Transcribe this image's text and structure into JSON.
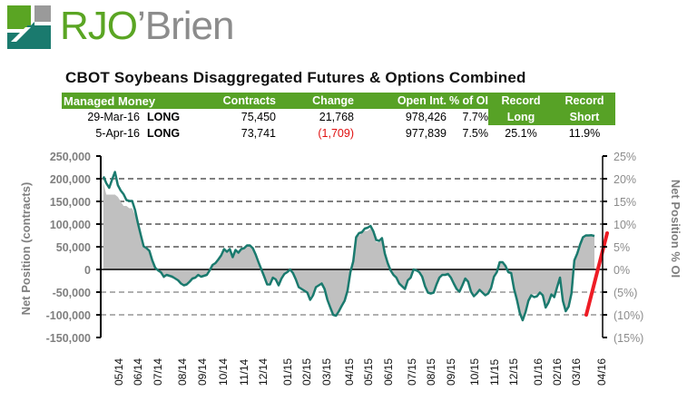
{
  "brand": {
    "name_part1": "RJO",
    "name_part2": "’Brien",
    "colors": {
      "green": "#5aa523",
      "teal": "#1a7a6e",
      "gray": "#8c8c8c"
    }
  },
  "title": "CBOT Soybeans Disaggregated Futures & Options Combined",
  "table": {
    "headers": [
      "Managed Money",
      "",
      "Contracts",
      "Change",
      "Open Int.",
      "% of OI",
      "Record",
      "Record"
    ],
    "headers_row2": [
      "Long",
      "Short"
    ],
    "rows": [
      {
        "date": "29-Mar-16",
        "side": "LONG",
        "contracts": "75,450",
        "change": "21,768",
        "open_int": "978,426",
        "pct_oi": "7.7%",
        "record_long": "",
        "record_short": ""
      },
      {
        "date": "5-Apr-16",
        "side": "LONG",
        "contracts": "73,741",
        "change": "(1,709)",
        "open_int": "977,839",
        "pct_oi": "7.5%",
        "record_long": "25.1%",
        "record_short": "11.9%"
      }
    ]
  },
  "chart_data": {
    "type": "line",
    "title": "CBOT Soybeans Disaggregated Futures & Options Combined",
    "ylabel": "Net Position (contracts)",
    "y2label": "Net Position % OI",
    "ylim": [
      -150000,
      250000
    ],
    "y2lim": [
      -15,
      25
    ],
    "y_ticks": [
      "250,000",
      "200,000",
      "150,000",
      "100,000",
      "50,000",
      "0",
      "-50,000",
      "-100,000",
      "-150,000"
    ],
    "y2_ticks": [
      "25%",
      "20%",
      "15%",
      "10%",
      "5%",
      "0%",
      "(5%)",
      "(10%)",
      "(15%)"
    ],
    "x_ticks": [
      "05/14",
      "06/14",
      "07/14",
      "08/14",
      "09/14",
      "10/14",
      "11/14",
      "12/14",
      "01/15",
      "02/15",
      "03/15",
      "04/15",
      "05/15",
      "06/15",
      "07/15",
      "08/15",
      "09/15",
      "10/15",
      "11/15",
      "12/15",
      "01/16",
      "02/16",
      "03/16",
      "04/16"
    ],
    "x_range": [
      "04/14",
      "04/16"
    ],
    "grid": true,
    "series": [
      {
        "name": "Net Position (contracts)",
        "axis": "left",
        "style": "line",
        "color": "#1a7a6e",
        "values": [
          205000,
          190000,
          180000,
          198000,
          215000,
          186000,
          174000,
          166000,
          153000,
          151000,
          151000,
          131000,
          102000,
          76000,
          51000,
          47000,
          41000,
          20000,
          4000,
          -2000,
          -6000,
          -16000,
          -12000,
          -14000,
          -16000,
          -20000,
          -24000,
          -31000,
          -35000,
          -33000,
          -27000,
          -20000,
          -18000,
          -12000,
          -16000,
          -14000,
          -12000,
          -2000,
          10000,
          14000,
          22000,
          31000,
          45000,
          39000,
          45000,
          27000,
          43000,
          37000,
          45000,
          47000,
          53000,
          53000,
          47000,
          33000,
          16000,
          0,
          -16000,
          -33000,
          -33000,
          -18000,
          -22000,
          -35000,
          -20000,
          -10000,
          -6000,
          0,
          -8000,
          -22000,
          -39000,
          -43000,
          -47000,
          -51000,
          -67000,
          -57000,
          -39000,
          -35000,
          -31000,
          -43000,
          -67000,
          -84000,
          -100000,
          -102000,
          -92000,
          -80000,
          -69000,
          -47000,
          -6000,
          18000,
          71000,
          80000,
          82000,
          90000,
          92000,
          96000,
          84000,
          65000,
          63000,
          69000,
          35000,
          14000,
          -2000,
          -12000,
          -18000,
          -31000,
          -37000,
          -43000,
          -24000,
          -18000,
          0,
          -2000,
          -6000,
          -16000,
          -37000,
          -51000,
          -53000,
          -51000,
          -33000,
          -18000,
          -12000,
          -12000,
          -10000,
          -18000,
          -31000,
          -43000,
          -49000,
          -35000,
          -20000,
          -27000,
          -49000,
          -59000,
          -53000,
          -45000,
          -51000,
          -57000,
          -53000,
          -41000,
          -16000,
          -6000,
          16000,
          16000,
          8000,
          -6000,
          -8000,
          -43000,
          -67000,
          -96000,
          -112000,
          -94000,
          -69000,
          -57000,
          -61000,
          -59000,
          -51000,
          -57000,
          -84000,
          -73000,
          -55000,
          -61000,
          -39000,
          -18000,
          -69000,
          -92000,
          -82000,
          -53000,
          20000,
          35000,
          55000,
          71000,
          75000,
          75000,
          75450,
          73741
        ]
      },
      {
        "name": "Net Position % OI",
        "axis": "right",
        "style": "area",
        "color": "#c0c0c0",
        "values": [
          19.0,
          16.5,
          16.5,
          16.5,
          16.5,
          16.0,
          15.0,
          14.0,
          14.0,
          13.5,
          13.5,
          12.0,
          9.5,
          7.5,
          5.0,
          4.5,
          4.0,
          2.0,
          0.5,
          -0.5,
          -1.0,
          -2.0,
          -1.5,
          -1.5,
          -2.0,
          -2.0,
          -2.5,
          -3.0,
          -3.5,
          -3.5,
          -3.0,
          -2.0,
          -2.0,
          -1.5,
          -1.5,
          -1.5,
          -1.0,
          0.0,
          1.0,
          1.5,
          2.0,
          3.0,
          4.5,
          4.0,
          4.5,
          3.0,
          4.0,
          4.0,
          4.5,
          4.5,
          5.0,
          5.0,
          4.5,
          3.5,
          1.5,
          0.0,
          -1.5,
          -3.0,
          -3.0,
          -2.0,
          -2.5,
          -3.5,
          -2.0,
          -1.0,
          -0.5,
          0.0,
          -1.0,
          -2.0,
          -4.0,
          -4.5,
          -5.0,
          -5.0,
          -6.0,
          -5.5,
          -4.0,
          -3.5,
          -3.0,
          -4.0,
          -6.0,
          -8.0,
          -10.0,
          -10.0,
          -9.0,
          -8.0,
          -7.0,
          -5.0,
          -0.5,
          2.0,
          7.0,
          7.5,
          8.0,
          8.5,
          8.5,
          9.0,
          8.0,
          6.0,
          6.0,
          6.5,
          3.5,
          1.5,
          0.0,
          -1.0,
          -2.0,
          -3.0,
          -3.5,
          -4.0,
          -2.5,
          -2.0,
          0.0,
          0.0,
          -0.5,
          -1.5,
          -3.5,
          -5.0,
          -5.0,
          -5.0,
          -3.0,
          -2.0,
          -1.0,
          -1.0,
          -1.0,
          -2.0,
          -3.0,
          -4.0,
          -4.5,
          -3.5,
          -2.0,
          -2.5,
          -4.5,
          -5.5,
          -5.0,
          -4.5,
          -5.0,
          -5.5,
          -5.0,
          -4.0,
          -1.5,
          -0.5,
          1.5,
          1.5,
          1.0,
          -0.5,
          -1.0,
          -4.0,
          -6.5,
          -9.0,
          -10.5,
          -9.0,
          -6.5,
          -5.5,
          -5.5,
          -5.5,
          -5.0,
          -5.5,
          -8.0,
          -7.0,
          -5.5,
          -6.0,
          -4.0,
          -2.0,
          -6.5,
          -9.0,
          -8.0,
          -5.0,
          2.0,
          3.5,
          5.5,
          7.0,
          7.5,
          7.5,
          7.7,
          7.5
        ]
      }
    ],
    "annotation": {
      "type": "trend-arrow-line",
      "color": "#ee1c25",
      "from": {
        "x": "03/16",
        "y_pct": -10
      },
      "to": {
        "x": "04/16",
        "y_pct": 8
      }
    }
  }
}
